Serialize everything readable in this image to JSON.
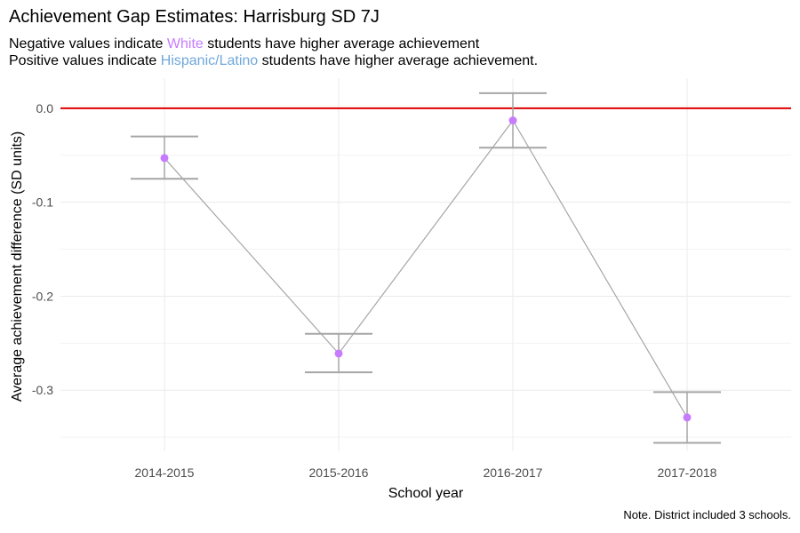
{
  "header": {
    "title": "Achievement Gap Estimates: Harrisburg SD 7J",
    "line1_pre": "Negative values indicate ",
    "line1_group": "White",
    "line1_post": " students have higher average achievement",
    "line2_pre": "Positive values indicate ",
    "line2_group": "Hispanic/Latino",
    "line2_post": " students have higher average achievement."
  },
  "colors": {
    "white_group": "#c77cff",
    "hispanic_group": "#6fa8dc",
    "reference_line": "#dd0000",
    "point": "#c77cff",
    "line_and_error_bars": "#a6a6a6",
    "grid": "#ebebeb"
  },
  "note": "Note. District included 3 schools.",
  "chart_data": {
    "type": "line",
    "categories": [
      "2014-2015",
      "2015-2016",
      "2016-2017",
      "2017-2018"
    ],
    "values": [
      -0.053,
      -0.261,
      -0.013,
      -0.329
    ],
    "error_bars": [
      {
        "lower": -0.075,
        "upper": -0.03
      },
      {
        "lower": -0.281,
        "upper": -0.24
      },
      {
        "lower": -0.042,
        "upper": 0.016
      },
      {
        "lower": -0.356,
        "upper": -0.302
      }
    ],
    "reference_line_y": 0.0,
    "xlabel": "School year",
    "ylabel": "Average achievement difference (SD units)",
    "y_ticks": [
      0.0,
      -0.1,
      -0.2,
      -0.3
    ],
    "y_tick_labels": [
      "0.0",
      "-0.1",
      "-0.2",
      "-0.3"
    ],
    "ylim": [
      -0.365,
      0.032
    ],
    "grid": true,
    "legend": "none"
  }
}
